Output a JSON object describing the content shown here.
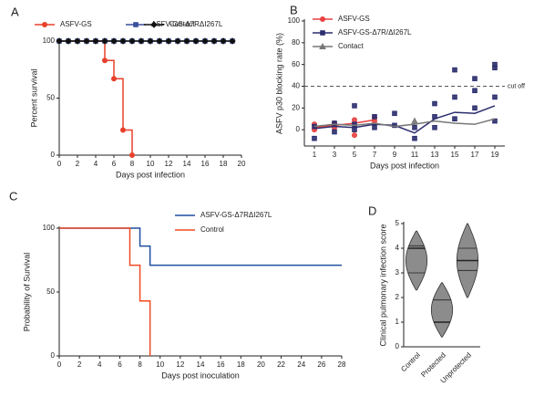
{
  "chart_data": [
    {
      "type": "line",
      "label": "A",
      "step": true,
      "xlabel": "Days post infection",
      "ylabel": "Percent survival",
      "x": [
        0,
        1,
        2,
        3,
        4,
        5,
        6,
        7,
        8,
        9,
        10,
        11,
        12,
        13,
        14,
        15,
        16,
        17,
        18,
        19
      ],
      "xlim": [
        0,
        20
      ],
      "xticks": [
        0,
        2,
        4,
        6,
        8,
        10,
        12,
        14,
        16,
        18,
        20
      ],
      "ylim": [
        0,
        100
      ],
      "yticks": [
        0,
        50,
        100
      ],
      "series": [
        {
          "name": "ASFV-GS",
          "color": "#e8402a",
          "marker": "circle",
          "values": [
            100,
            100,
            100,
            100,
            100,
            83,
            67,
            22,
            0,
            null,
            null,
            null,
            null,
            null,
            null,
            null,
            null,
            null,
            null,
            null
          ]
        },
        {
          "name": "ASFV-GS-Δ7RΔI267L",
          "color": "#3a4f9a",
          "marker": "square",
          "values": [
            100,
            100,
            100,
            100,
            100,
            100,
            100,
            100,
            100,
            100,
            100,
            100,
            100,
            100,
            100,
            100,
            100,
            100,
            100,
            100
          ]
        },
        {
          "name": "Contact",
          "color": "#111111",
          "marker": "diamond",
          "values": [
            100,
            100,
            100,
            100,
            100,
            100,
            100,
            100,
            100,
            100,
            100,
            100,
            100,
            100,
            100,
            100,
            100,
            100,
            100,
            100
          ]
        }
      ]
    },
    {
      "type": "line",
      "label": "B",
      "step": false,
      "xlabel": "Days post infection",
      "ylabel": "ASFV p30 blocking rate (%)",
      "xlim": [
        0,
        20
      ],
      "xticks": [
        1,
        3,
        5,
        7,
        9,
        11,
        13,
        15,
        17,
        19
      ],
      "ylim": [
        -15,
        100
      ],
      "yticks": [
        0,
        20,
        40,
        60,
        80,
        100
      ],
      "cutoff": 40,
      "cutoff_label": "cut off",
      "series": [
        {
          "name": "ASFV-GS",
          "color": "#e84040",
          "marker": "circle",
          "x": [
            1,
            3,
            5,
            7
          ],
          "values": [
            2,
            4,
            6,
            9
          ],
          "points": {
            "x": [
              1,
              1,
              3,
              3,
              5,
              5,
              7,
              7
            ],
            "y": [
              0,
              5,
              2,
              6,
              -5,
              9,
              8,
              11
            ]
          }
        },
        {
          "name": "ASFV-GS-Δ7R/ΔI267L",
          "color": "#2b2d6e",
          "marker": "square",
          "x": [
            1,
            3,
            5,
            7,
            9,
            11,
            13,
            15,
            17,
            19
          ],
          "values": [
            1,
            3,
            2,
            5,
            4,
            -3,
            10,
            16,
            15,
            22
          ],
          "points": {
            "x": [
              1,
              1,
              3,
              3,
              5,
              5,
              5,
              7,
              7,
              9,
              9,
              11,
              11,
              13,
              13,
              13,
              15,
              15,
              15,
              17,
              17,
              17,
              19,
              19,
              19,
              19
            ],
            "y": [
              -8,
              3,
              -2,
              6,
              22,
              0,
              5,
              2,
              12,
              15,
              4,
              -8,
              2,
              24,
              12,
              2,
              55,
              30,
              10,
              47,
              36,
              20,
              60,
              57,
              30,
              8
            ]
          }
        },
        {
          "name": "Contact",
          "color": "#777777",
          "marker": "triangle",
          "x": [
            1,
            3,
            5,
            7,
            9,
            11,
            13,
            15,
            17,
            19
          ],
          "values": [
            3,
            5,
            4,
            6,
            3,
            5,
            8,
            6,
            5,
            10
          ],
          "points": {
            "x": [
              11
            ],
            "y": [
              8
            ]
          }
        }
      ]
    },
    {
      "type": "line",
      "label": "C",
      "step": true,
      "xlabel": "Days post inoculation",
      "ylabel": "Probability of Survival",
      "xlim": [
        0,
        28
      ],
      "xticks": [
        0,
        2,
        4,
        6,
        8,
        10,
        12,
        14,
        16,
        18,
        20,
        22,
        24,
        26,
        28
      ],
      "ylim": [
        0,
        100
      ],
      "yticks": [
        0,
        50,
        100
      ],
      "series": [
        {
          "name": "ASFV-GS-Δ7RΔI267L",
          "color": "#1f4fa0",
          "x": [
            0,
            8,
            9,
            28
          ],
          "values": [
            100,
            86,
            71,
            71
          ]
        },
        {
          "name": "Control",
          "color": "#f04a23",
          "x": [
            0,
            7,
            8,
            9
          ],
          "values": [
            100,
            71,
            43,
            0
          ]
        }
      ]
    },
    {
      "type": "violin",
      "label": "D",
      "ylabel": "Clinical pulmonary infection score",
      "categories": [
        "Control",
        "Protected",
        "Unprotected"
      ],
      "ylim": [
        0,
        5
      ],
      "yticks": [
        0,
        1,
        2,
        3,
        4,
        5
      ],
      "color": "#8c8c8c",
      "violins": [
        {
          "min": 2.3,
          "q1": 3.0,
          "median": 4.0,
          "q3": 4.1,
          "max": 4.7
        },
        {
          "min": 0.4,
          "q1": 1.0,
          "median": 1.0,
          "q3": 1.9,
          "max": 2.6
        },
        {
          "min": 2.0,
          "q1": 3.1,
          "median": 3.5,
          "q3": 4.0,
          "max": 5.0
        }
      ]
    }
  ]
}
